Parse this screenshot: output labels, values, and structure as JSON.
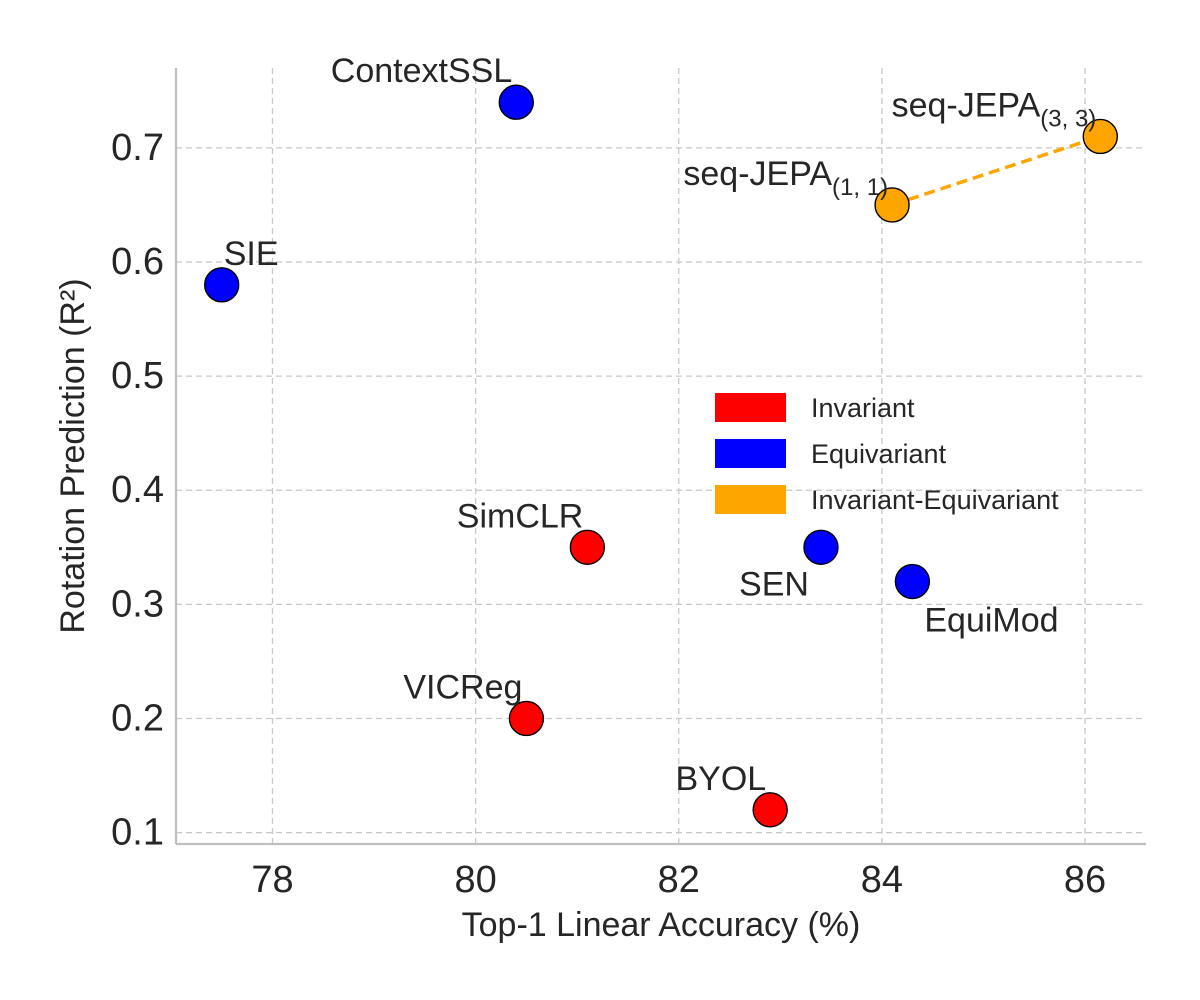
{
  "chart_data": {
    "type": "scatter",
    "title": "",
    "xlabel": "Top-1 Linear Accuracy (%)",
    "ylabel": "Rotation Prediction (R²)",
    "xlim": [
      77.05,
      86.6
    ],
    "ylim": [
      0.09,
      0.77
    ],
    "xticks": [
      78,
      80,
      82,
      84,
      86
    ],
    "yticks": [
      0.1,
      0.2,
      0.3,
      0.4,
      0.5,
      0.6,
      0.7
    ],
    "xtick_labels": [
      "78",
      "80",
      "82",
      "84",
      "86"
    ],
    "ytick_labels": [
      "0.1",
      "0.2",
      "0.3",
      "0.4",
      "0.5",
      "0.6",
      "0.7"
    ],
    "grid": true,
    "categories": [
      {
        "name": "Invariant",
        "color": "#ff0000"
      },
      {
        "name": "Equivariant",
        "color": "#0000ff"
      },
      {
        "name": "Invariant-Equivariant",
        "color": "#ffa500"
      }
    ],
    "legend_position": "center-right",
    "points": [
      {
        "label": "ContextSSL",
        "sub": "",
        "x": 80.4,
        "y": 0.74,
        "category": "Equivariant",
        "label_pos": "upper-left"
      },
      {
        "label": "SIE",
        "sub": "",
        "x": 77.5,
        "y": 0.58,
        "category": "Equivariant",
        "label_pos": "upper-right"
      },
      {
        "label": "SEN",
        "sub": "",
        "x": 83.4,
        "y": 0.35,
        "category": "Equivariant",
        "label_pos": "lower-left"
      },
      {
        "label": "EquiMod",
        "sub": "",
        "x": 84.3,
        "y": 0.32,
        "category": "Equivariant",
        "label_pos": "lower-right"
      },
      {
        "label": "SimCLR",
        "sub": "",
        "x": 81.1,
        "y": 0.35,
        "category": "Invariant",
        "label_pos": "upper-left"
      },
      {
        "label": "VICReg",
        "sub": "",
        "x": 80.5,
        "y": 0.2,
        "category": "Invariant",
        "label_pos": "upper-left"
      },
      {
        "label": "BYOL",
        "sub": "",
        "x": 82.9,
        "y": 0.12,
        "category": "Invariant",
        "label_pos": "upper-left"
      },
      {
        "label": "seq-JEPA",
        "sub": "(1, 1)",
        "x": 84.1,
        "y": 0.65,
        "category": "Invariant-Equivariant",
        "label_pos": "upper-left"
      },
      {
        "label": "seq-JEPA",
        "sub": "(3, 3)",
        "x": 86.15,
        "y": 0.71,
        "category": "Invariant-Equivariant",
        "label_pos": "upper-left"
      }
    ],
    "lines": [
      {
        "from": [
          84.1,
          0.65
        ],
        "to": [
          86.15,
          0.71
        ],
        "category": "Invariant-Equivariant",
        "style": "dashed"
      }
    ]
  }
}
